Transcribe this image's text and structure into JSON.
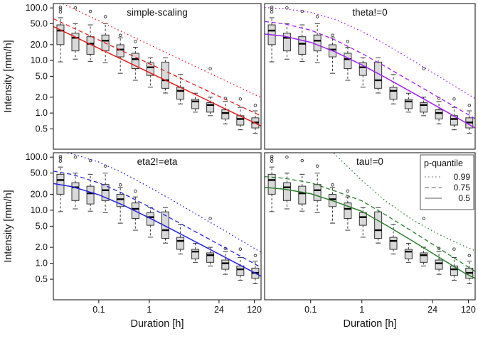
{
  "chart_data": {
    "type": "boxplot+line",
    "title": "",
    "xlabel": "Duration [h]",
    "ylabel": "Intensity [mm/h]",
    "log_x": true,
    "log_y": true,
    "xlim": [
      0.0126,
      163
    ],
    "ylim": [
      0.205,
      121
    ],
    "x_ticks": [
      0.1,
      1,
      24,
      120
    ],
    "x_tick_labels": [
      "0.1",
      "1",
      "24",
      "120"
    ],
    "y_ticks": [
      100,
      50,
      20,
      10,
      5,
      2,
      1,
      0.5
    ],
    "y_tick_labels": [
      "100.0",
      "50.0",
      "20.0",
      "10.0",
      "5.0",
      "2.0",
      "1.0",
      "0.5"
    ],
    "box_fill": "#d9d9d9",
    "box_stroke": "#333333",
    "boxplots": [
      {
        "d": 0.0174,
        "whisker_low": 9.4,
        "q1": 20.0,
        "median": 37.0,
        "q3": 47.5,
        "whisker_high": 65.0,
        "outliers": [
          84,
          95,
          103
        ]
      },
      {
        "d": 0.0344,
        "whisker_low": 10.6,
        "q1": 15.2,
        "median": 27.0,
        "q3": 33.0,
        "whisker_high": 50.0,
        "outliers": [
          100
        ]
      },
      {
        "d": 0.0682,
        "whisker_low": 9.6,
        "q1": 13.1,
        "median": 20.8,
        "q3": 28.3,
        "whisker_high": 47.5,
        "outliers": [
          86
        ]
      },
      {
        "d": 0.135,
        "whisker_low": 9.0,
        "q1": 15.2,
        "median": 23.8,
        "q3": 30.5,
        "whisker_high": 50.0,
        "outliers": [
          68
        ]
      },
      {
        "d": 0.267,
        "whisker_low": 5.7,
        "q1": 11.7,
        "median": 16.1,
        "q3": 19.9,
        "whisker_high": 27.0,
        "outliers": [
          30
        ]
      },
      {
        "d": 0.53,
        "whisker_low": 4.2,
        "q1": 7.0,
        "median": 10.6,
        "q3": 13.7,
        "whisker_high": 17.8,
        "outliers": [
          23
        ]
      },
      {
        "d": 1.05,
        "whisker_low": 3.1,
        "q1": 5.2,
        "median": 7.4,
        "q3": 9.0,
        "whisker_high": 11.2,
        "outliers": []
      },
      {
        "d": 2.08,
        "whisker_low": 2.4,
        "q1": 2.95,
        "median": 4.2,
        "q3": 9.3,
        "whisker_high": 11.2,
        "outliers": []
      },
      {
        "d": 4.12,
        "whisker_low": 1.49,
        "q1": 1.83,
        "median": 2.64,
        "q3": 3.08,
        "whisker_high": 5.4,
        "outliers": []
      },
      {
        "d": 8.15,
        "whisker_low": 1.04,
        "q1": 1.21,
        "median": 1.66,
        "q3": 1.83,
        "whisker_high": 2.38,
        "outliers": []
      },
      {
        "d": 16.1,
        "whisker_low": 0.89,
        "q1": 1.04,
        "median": 1.42,
        "q3": 1.57,
        "whisker_high": 2.0,
        "outliers": [
          7.0
        ]
      },
      {
        "d": 32.0,
        "whisker_low": 0.62,
        "q1": 0.77,
        "median": 1.0,
        "q3": 1.15,
        "whisker_high": 1.66,
        "outliers": [
          1.9
        ]
      },
      {
        "d": 63.3,
        "whisker_low": 0.48,
        "q1": 0.59,
        "median": 0.77,
        "q3": 0.89,
        "whisker_high": 1.28,
        "outliers": [
          1.85
        ]
      },
      {
        "d": 125.4,
        "whisker_low": 0.41,
        "q1": 0.52,
        "median": 0.66,
        "q3": 0.81,
        "whisker_high": 1.1,
        "outliers": [
          1.4
        ]
      }
    ],
    "curve_durations": [
      0.0126,
      0.03,
      0.1,
      0.3,
      1,
      3,
      10,
      30,
      100,
      163
    ],
    "panels": [
      {
        "title": "simple-scaling",
        "color": "#e51c1c",
        "curves": [
          {
            "p": "0.99",
            "style": "dotted",
            "values": [
              146.6,
              98.6,
              57.0,
              34.6,
              20.0,
              12.1,
              7.02,
              4.25,
              2.46,
              1.97
            ]
          },
          {
            "p": "0.75",
            "style": "dashed",
            "values": [
              62.4,
              42.2,
              24.5,
              15.0,
              8.7,
              5.31,
              3.09,
              1.88,
              1.1,
              0.88
            ]
          },
          {
            "p": "0.5",
            "style": "solid",
            "values": [
              44.1,
              29.6,
              17.0,
              10.3,
              5.9,
              3.56,
              2.05,
              1.23,
              0.709,
              0.568
            ]
          }
        ]
      },
      {
        "title": "theta!=0",
        "color": "#a020f0",
        "curves": [
          {
            "p": "0.99",
            "style": "dotted",
            "values": [
              101.3,
              96.6,
              82.3,
              60.6,
              35.8,
              19.9,
              9.9,
              5.16,
              2.52,
              1.88
            ]
          },
          {
            "p": "0.75",
            "style": "dashed",
            "values": [
              55.1,
              50.0,
              37.8,
              24.6,
              13.6,
              7.48,
              3.81,
              2.04,
              1.03,
              0.78
            ]
          },
          {
            "p": "0.5",
            "style": "solid",
            "values": [
              31.8,
              29.0,
              22.1,
              14.6,
              8.25,
              4.63,
              2.41,
              1.32,
              0.68,
              0.52
            ]
          }
        ]
      },
      {
        "title": "eta2!=eta",
        "color": "#2323e0",
        "curves": [
          {
            "p": "0.99",
            "style": "dotted",
            "values": [
              132.2,
              115.1,
              80.9,
              50.4,
              27.2,
              15.0,
              7.7,
              4.17,
              2.12,
              1.61
            ]
          },
          {
            "p": "0.75",
            "style": "dashed",
            "values": [
              54.5,
              47.0,
              32.8,
              20.7,
              11.56,
              6.62,
              3.55,
              2.01,
              1.08,
              0.83
            ]
          },
          {
            "p": "0.5",
            "style": "solid",
            "values": [
              31.8,
              27.6,
              19.5,
              12.5,
              7.16,
              4.19,
              2.3,
              1.33,
              0.73,
              0.57
            ]
          }
        ]
      },
      {
        "title": "tau!=0",
        "color": "#2a7d2a",
        "curves": [
          {
            "p": "0.99",
            "style": "dotted",
            "values": [
              1000,
              600,
              300,
              112,
              36.4,
              14.5,
              6.5,
              3.6,
              2.1,
              1.72
            ]
          },
          {
            "p": "0.75",
            "style": "dashed",
            "values": [
              43,
              40,
              33,
              23,
              15,
              8.0,
              3.9,
              2.0,
              0.95,
              0.7
            ]
          },
          {
            "p": "0.5",
            "style": "solid",
            "values": [
              27,
              25,
              20.5,
              14.5,
              9.5,
              5.2,
              2.6,
              1.35,
              0.66,
              0.52
            ]
          }
        ]
      }
    ],
    "legend": {
      "title": "p-quantile",
      "line_color": "#7f7f7f",
      "entries": [
        {
          "label": "0.99",
          "style": "dotted"
        },
        {
          "label": "0.75",
          "style": "dashed"
        },
        {
          "label": "0.5",
          "style": "solid"
        }
      ]
    }
  }
}
